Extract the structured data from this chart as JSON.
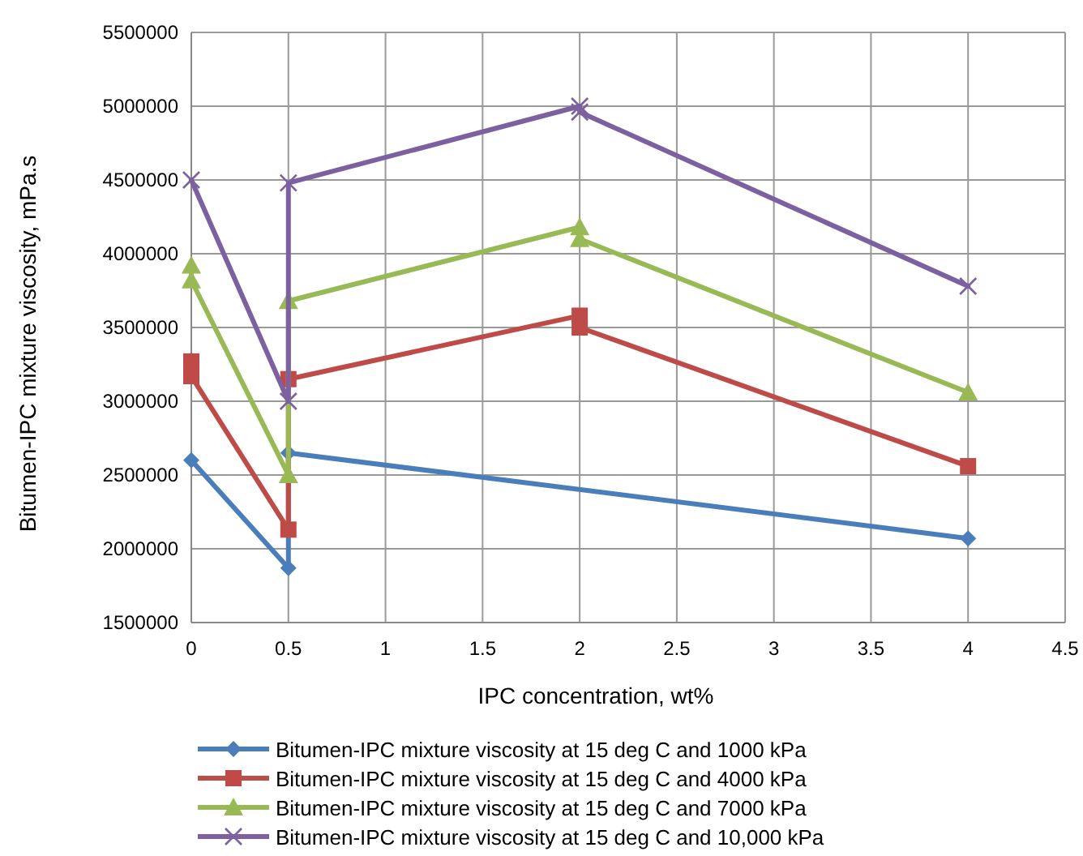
{
  "chart_data": {
    "type": "line",
    "xlabel": "IPC concentration, wt%",
    "ylabel": "Bitumen-IPC mixture viscosity, mPa.s",
    "xlim": [
      0,
      4.5
    ],
    "xticks": [
      0,
      0.5,
      1,
      1.5,
      2,
      2.5,
      3,
      3.5,
      4,
      4.5
    ],
    "ylim": [
      1500000,
      5500000
    ],
    "yticks": [
      1500000,
      2000000,
      2500000,
      3000000,
      3500000,
      4000000,
      4500000,
      5000000,
      5500000
    ],
    "grid": true,
    "legend": "bottom",
    "series": [
      {
        "name": "Bitumen-IPC mixture viscosity at 15 deg C and 1000 kPa",
        "color": "#4a7ebb",
        "marker": "diamond",
        "x": [
          0,
          0.5,
          0.5,
          4
        ],
        "values": [
          2600000,
          1870000,
          2650000,
          2070000
        ]
      },
      {
        "name": "Bitumen-IPC mixture viscosity at 15 deg C and 4000 kPa",
        "color": "#be4b48",
        "marker": "square",
        "x": [
          0,
          0,
          0.5,
          0.5,
          2,
          2,
          4
        ],
        "values": [
          3270000,
          3170000,
          2130000,
          3150000,
          3580000,
          3500000,
          2560000
        ]
      },
      {
        "name": "Bitumen-IPC mixture viscosity at 15 deg C and 7000 kPa",
        "color": "#98b954",
        "marker": "triangle",
        "x": [
          0,
          0,
          0.5,
          0.5,
          2,
          2,
          4
        ],
        "values": [
          3920000,
          3820000,
          2500000,
          3680000,
          4180000,
          4100000,
          3060000
        ]
      },
      {
        "name": "Bitumen-IPC mixture viscosity at 15 deg C and 10,000 kPa",
        "color": "#7d60a0",
        "marker": "cross",
        "x": [
          0,
          0.5,
          0.5,
          2,
          2,
          4
        ],
        "values": [
          4500000,
          3000000,
          4480000,
          5000000,
          4960000,
          3780000
        ]
      }
    ]
  }
}
